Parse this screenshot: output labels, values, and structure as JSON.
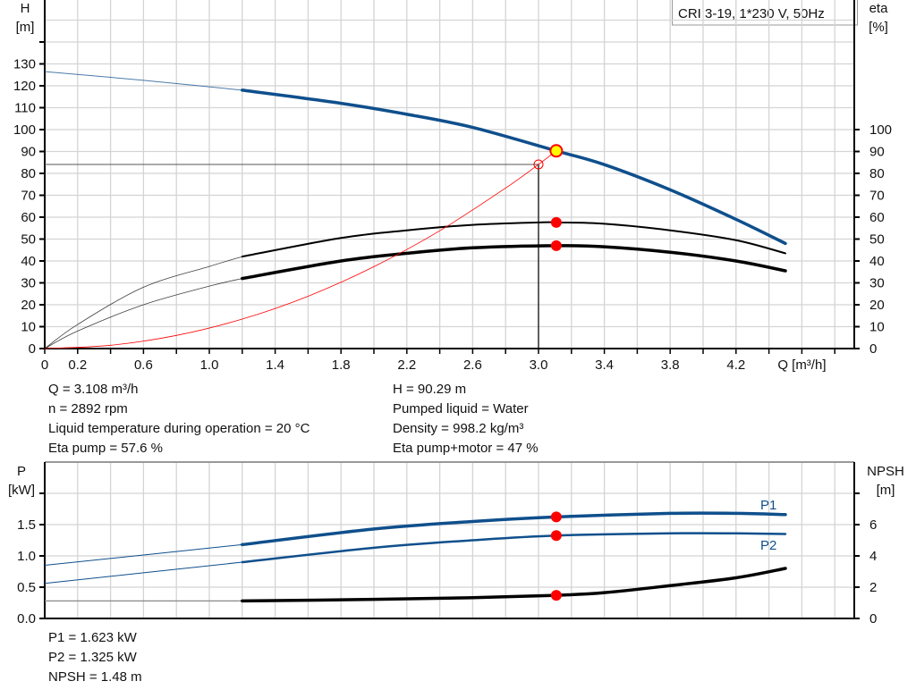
{
  "title_box": "CRI 3-19, 1*230 V, 50Hz",
  "colors": {
    "head": "#0f4f8c",
    "eta": "#000000",
    "system": "#ff0000",
    "power": "#0f4f8c",
    "npsh": "#000000",
    "marker": "#ff0000",
    "duty_point": "#ffff00",
    "grid": "#d4d4d4"
  },
  "info_top_left": [
    "Q = 3.108 m³/h",
    "n = 2892 rpm",
    "Liquid temperature during operation = 20 °C",
    "Eta pump = 57.6 %"
  ],
  "info_top_right": [
    "H = 90.29 m",
    "Pumped liquid = Water",
    "Density = 998.2 kg/m³",
    "Eta pump+motor = 47 %"
  ],
  "info_bottom": [
    "P1 = 1.623 kW",
    "P2 = 1.325 kW",
    "NPSH = 1.48 m"
  ],
  "chart_data": [
    {
      "type": "line",
      "xlabel": "Q [m³/h]",
      "ylabel": [
        "H",
        "[m]"
      ],
      "y2label": [
        "eta",
        "[%]"
      ],
      "xlim": [
        0,
        4.92
      ],
      "ylim": [
        0,
        159
      ],
      "x_ticklabels": [
        "0",
        "0.2",
        "0.6",
        "1.0",
        "1.4",
        "1.8",
        "2.2",
        "2.6",
        "3.0",
        "3.4",
        "3.8",
        "4.2"
      ],
      "y_ticklabels": [
        "0",
        "10",
        "20",
        "30",
        "40",
        "50",
        "60",
        "70",
        "80",
        "90",
        "100",
        "110",
        "120",
        "130"
      ],
      "y2_ticklabels": [
        "0",
        "10",
        "20",
        "30",
        "40",
        "50",
        "60",
        "70",
        "80",
        "90",
        "100"
      ],
      "grid": true,
      "series": [
        {
          "id": "head",
          "thin": [
            [
              0,
              126.5
            ],
            [
              0.6,
              122.5
            ],
            [
              1.2,
              118
            ]
          ],
          "thick": [
            [
              1.2,
              118
            ],
            [
              1.8,
              112
            ],
            [
              2.2,
              107
            ],
            [
              2.6,
              101
            ],
            [
              3.108,
              90.29
            ],
            [
              3.4,
              84
            ],
            [
              3.8,
              72.5
            ],
            [
              4.2,
              59
            ],
            [
              4.5,
              48
            ]
          ]
        },
        {
          "id": "eta-pump",
          "thin": [
            [
              0,
              0
            ],
            [
              0.2,
              11
            ],
            [
              0.6,
              28
            ],
            [
              1.0,
              37.5
            ],
            [
              1.2,
              42
            ]
          ],
          "thick": [
            [
              1.2,
              42
            ],
            [
              1.8,
              50.5
            ],
            [
              2.2,
              54
            ],
            [
              2.6,
              56.5
            ],
            [
              3.0,
              57.6
            ],
            [
              3.108,
              57.6
            ],
            [
              3.4,
              57
            ],
            [
              3.8,
              54
            ],
            [
              4.2,
              49.5
            ],
            [
              4.5,
              43.5
            ]
          ]
        },
        {
          "id": "eta-pump-motor",
          "thin": [
            [
              0,
              0
            ],
            [
              0.2,
              8
            ],
            [
              0.6,
              20
            ],
            [
              1.0,
              28.5
            ],
            [
              1.2,
              32
            ]
          ],
          "thick": [
            [
              1.2,
              32
            ],
            [
              1.8,
              40
            ],
            [
              2.2,
              43.5
            ],
            [
              2.6,
              46
            ],
            [
              3.108,
              47
            ],
            [
              3.4,
              46.5
            ],
            [
              3.8,
              44
            ],
            [
              4.2,
              40
            ],
            [
              4.5,
              35.5
            ]
          ]
        },
        {
          "id": "system-curve",
          "thin": [
            [
              0,
              0
            ],
            [
              0.4,
              1.5
            ],
            [
              0.8,
              6.0
            ],
            [
              1.2,
              13.46
            ],
            [
              1.6,
              23.9
            ],
            [
              2.0,
              37.4
            ],
            [
              2.4,
              53.8
            ],
            [
              2.8,
              73.3
            ],
            [
              3.0,
              84.1
            ],
            [
              3.108,
              90.29
            ]
          ],
          "thick": []
        }
      ],
      "duty_point": {
        "q": 3.108,
        "h": 90.29,
        "eta_pump": 57.6,
        "eta_total": 47
      },
      "reference_point": {
        "q": 3.0,
        "h": 84.1
      }
    },
    {
      "type": "line",
      "ylabel": [
        "P",
        "[kW]"
      ],
      "y2label": [
        "NPSH",
        "[m]"
      ],
      "xlim": [
        0,
        4.92
      ],
      "ylim": [
        0,
        2.5
      ],
      "y_ticklabels": [
        "0.0",
        "0.5",
        "1.0",
        "1.5"
      ],
      "y2_ticklabels": [
        "0",
        "2",
        "4",
        "6"
      ],
      "grid": true,
      "series": [
        {
          "id": "p1",
          "name": "P1",
          "thin": [
            [
              0,
              0.85
            ],
            [
              1.2,
              1.18
            ]
          ],
          "thick": [
            [
              1.2,
              1.18
            ],
            [
              2.0,
              1.43
            ],
            [
              2.6,
              1.55
            ],
            [
              3.108,
              1.623
            ],
            [
              3.8,
              1.68
            ],
            [
              4.2,
              1.68
            ],
            [
              4.5,
              1.66
            ]
          ]
        },
        {
          "id": "p2",
          "name": "P2",
          "thin": [
            [
              0,
              0.56
            ],
            [
              1.2,
              0.9
            ]
          ],
          "thick": [
            [
              1.2,
              0.9
            ],
            [
              2.0,
              1.13
            ],
            [
              2.6,
              1.25
            ],
            [
              3.108,
              1.325
            ],
            [
              3.8,
              1.36
            ],
            [
              4.2,
              1.36
            ],
            [
              4.5,
              1.35
            ]
          ]
        },
        {
          "id": "npsh",
          "thin": [
            [
              0,
              1.12
            ],
            [
              1.2,
              1.12
            ]
          ],
          "thick": [
            [
              1.2,
              1.12
            ],
            [
              2.0,
              1.22
            ],
            [
              2.6,
              1.33
            ],
            [
              3.108,
              1.48
            ],
            [
              3.4,
              1.65
            ],
            [
              3.8,
              2.1
            ],
            [
              4.2,
              2.6
            ],
            [
              4.5,
              3.2
            ]
          ]
        }
      ],
      "duty_point": {
        "q": 3.108,
        "p1": 1.623,
        "p2": 1.325,
        "npsh": 1.48
      }
    }
  ]
}
